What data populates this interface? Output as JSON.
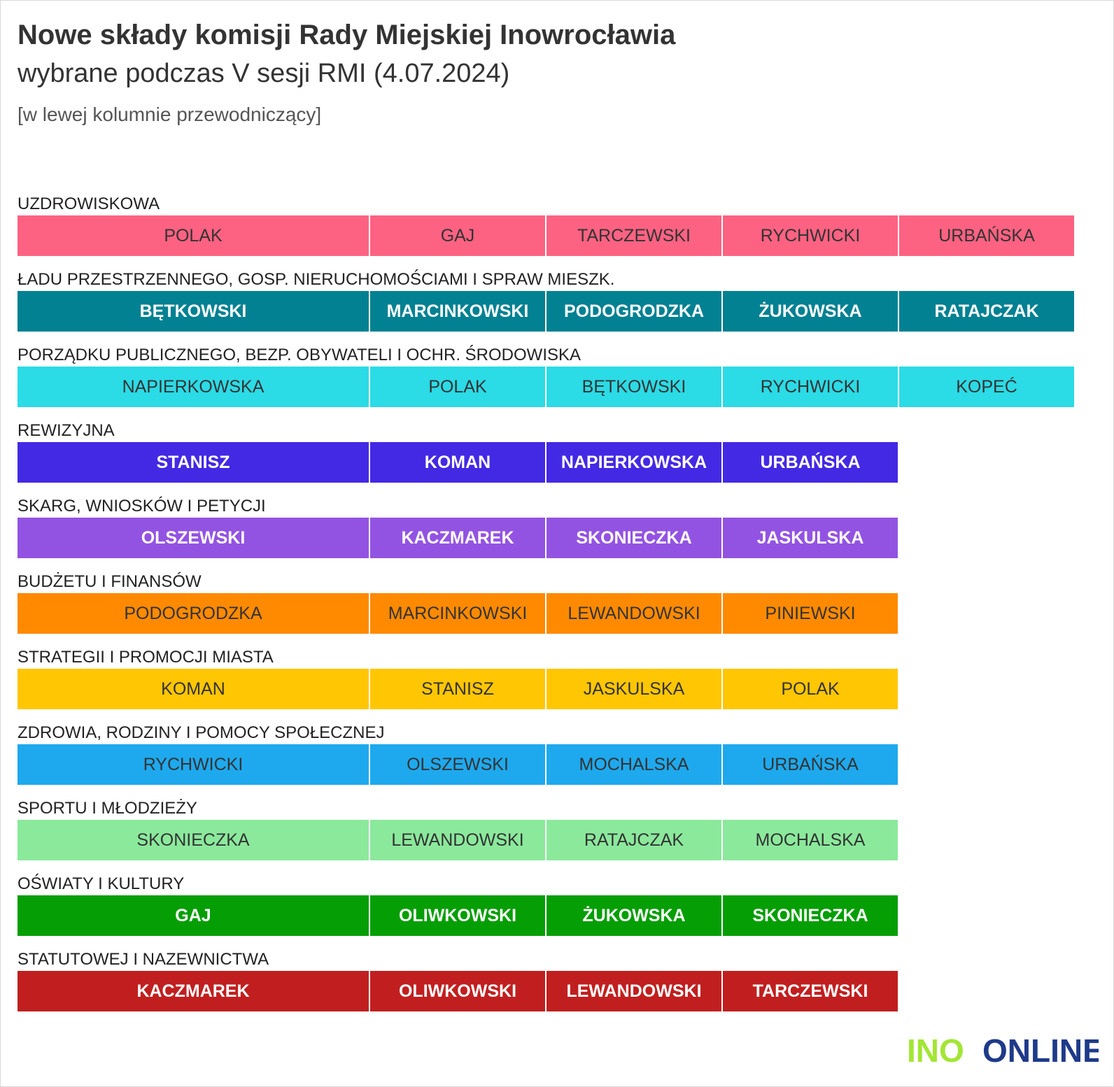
{
  "header": {
    "title": "Nowe składy komisji Rady Miejskiej Inowrocławia",
    "subtitle": "wybrane podczas V sesji RMI (4.07.2024)",
    "note": "[w lewej kolumnie przewodniczący]"
  },
  "logo": {
    "text_left": "INO",
    "text_right": "ONLINE",
    "color_left": "#a3e635",
    "color_right": "#1e3a8a"
  },
  "chart_data": {
    "type": "table",
    "title": "Nowe składy komisji Rady Miejskiej Inowrocławia",
    "subtitle": "wybrane podczas V sesji RMI (4.07.2024)",
    "annotation": "[w lewej kolumnie przewodniczący]",
    "committees": [
      {
        "name": "UZDROWISKOWA",
        "color": "#fe6282",
        "text_color": "#333333",
        "bold": false,
        "members": [
          "POLAK",
          "GAJ",
          "TARCZEWSKI",
          "RYCHWICKI",
          "URBAŃSKA"
        ]
      },
      {
        "name": "ŁADU PRZESTRZENNEGO, GOSP. NIERUCHOMOŚCIAMI I SPRAW MIESZK.",
        "color": "#028192",
        "text_color": "#ffffff",
        "bold": true,
        "members": [
          "BĘTKOWSKI",
          "MARCINKOWSKI",
          "PODOGRODZKA",
          "ŻUKOWSKA",
          "RATAJCZAK"
        ]
      },
      {
        "name": "PORZĄDKU PUBLICZNEGO, BEZP. OBYWATELI I OCHR. ŚRODOWISKA",
        "color": "#2bdbe6",
        "text_color": "#333333",
        "bold": false,
        "members": [
          "NAPIERKOWSKA",
          "POLAK",
          "BĘTKOWSKI",
          "RYCHWICKI",
          "KOPEĆ"
        ]
      },
      {
        "name": "REWIZYJNA",
        "color": "#4329e4",
        "text_color": "#ffffff",
        "bold": true,
        "members": [
          "STANISZ",
          "KOMAN",
          "NAPIERKOWSKA",
          "URBAŃSKA"
        ]
      },
      {
        "name": "SKARG, WNIOSKÓW I PETYCJI",
        "color": "#9353e2",
        "text_color": "#ffffff",
        "bold": true,
        "members": [
          "OLSZEWSKI",
          "KACZMAREK",
          "SKONIECZKA",
          "JASKULSKA"
        ]
      },
      {
        "name": "BUDŻETU I FINANSÓW",
        "color": "#ff8a00",
        "text_color": "#333333",
        "bold": false,
        "members": [
          "PODOGRODZKA",
          "MARCINKOWSKI",
          "LEWANDOWSKI",
          "PINIEWSKI"
        ]
      },
      {
        "name": "STRATEGII I PROMOCJI MIASTA",
        "color": "#ffc603",
        "text_color": "#333333",
        "bold": false,
        "members": [
          "KOMAN",
          "STANISZ",
          "JASKULSKA",
          "POLAK"
        ]
      },
      {
        "name": "ZDROWIA, RODZINY I POMOCY SPOŁECZNEJ",
        "color": "#1ea9ee",
        "text_color": "#333333",
        "bold": false,
        "members": [
          "RYCHWICKI",
          "OLSZEWSKI",
          "MOCHALSKA",
          "URBAŃSKA"
        ]
      },
      {
        "name": "SPORTU I MŁODZIEŻY",
        "color": "#8be99c",
        "text_color": "#333333",
        "bold": false,
        "members": [
          "SKONIECZKA",
          "LEWANDOWSKI",
          "RATAJCZAK",
          "MOCHALSKA"
        ]
      },
      {
        "name": "OŚWIATY I KULTURY",
        "color": "#069e05",
        "text_color": "#ffffff",
        "bold": true,
        "members": [
          "GAJ",
          "OLIWKOWSKI",
          "ŻUKOWSKA",
          "SKONIECZKA"
        ]
      },
      {
        "name": "STATUTOWEJ I NAZEWNICTWA",
        "color": "#c11f1f",
        "text_color": "#ffffff",
        "bold": true,
        "members": [
          "KACZMAREK",
          "OLIWKOWSKI",
          "LEWANDOWSKI",
          "TARCZEWSKI"
        ]
      }
    ]
  }
}
